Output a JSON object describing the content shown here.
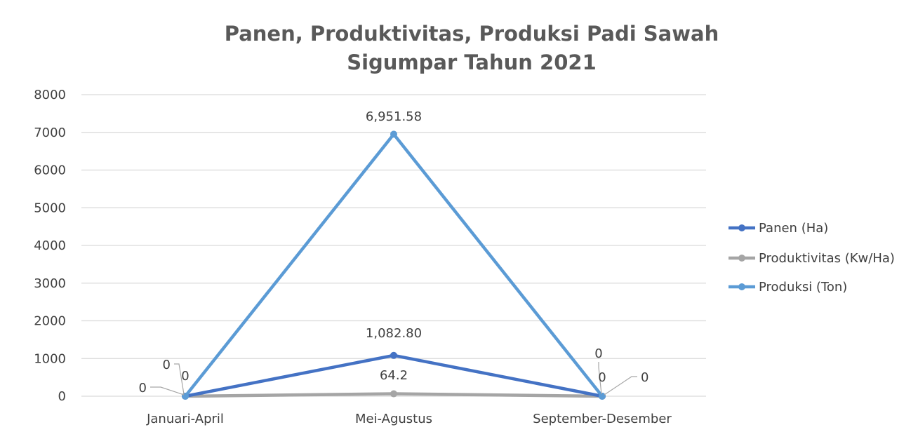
{
  "chart_data": {
    "type": "line",
    "title_lines": [
      "Panen, Produktivitas, Produksi Padi Sawah",
      "Sigumpar Tahun 2021"
    ],
    "categories": [
      "Januari-April",
      "Mei-Agustus",
      "September-Desember"
    ],
    "ylim": [
      0,
      8000
    ],
    "yticks": [
      0,
      1000,
      2000,
      3000,
      4000,
      5000,
      6000,
      7000,
      8000
    ],
    "grid": true,
    "legend_position": "right",
    "series": [
      {
        "name": "Panen (Ha)",
        "color": "#4472C4",
        "values": [
          0,
          1082.8,
          0
        ],
        "labels": [
          "0",
          "1,082.80",
          "0"
        ]
      },
      {
        "name": "Produktivitas (Kw/Ha)",
        "color": "#A5A5A5",
        "values": [
          0,
          64.2,
          0
        ],
        "labels": [
          "0",
          "64.2",
          "0"
        ]
      },
      {
        "name": "Produksi (Ton)",
        "color": "#5B9BD5",
        "values": [
          0,
          6951.58,
          0
        ],
        "labels": [
          "0",
          "6,951.58",
          "0"
        ]
      }
    ]
  }
}
